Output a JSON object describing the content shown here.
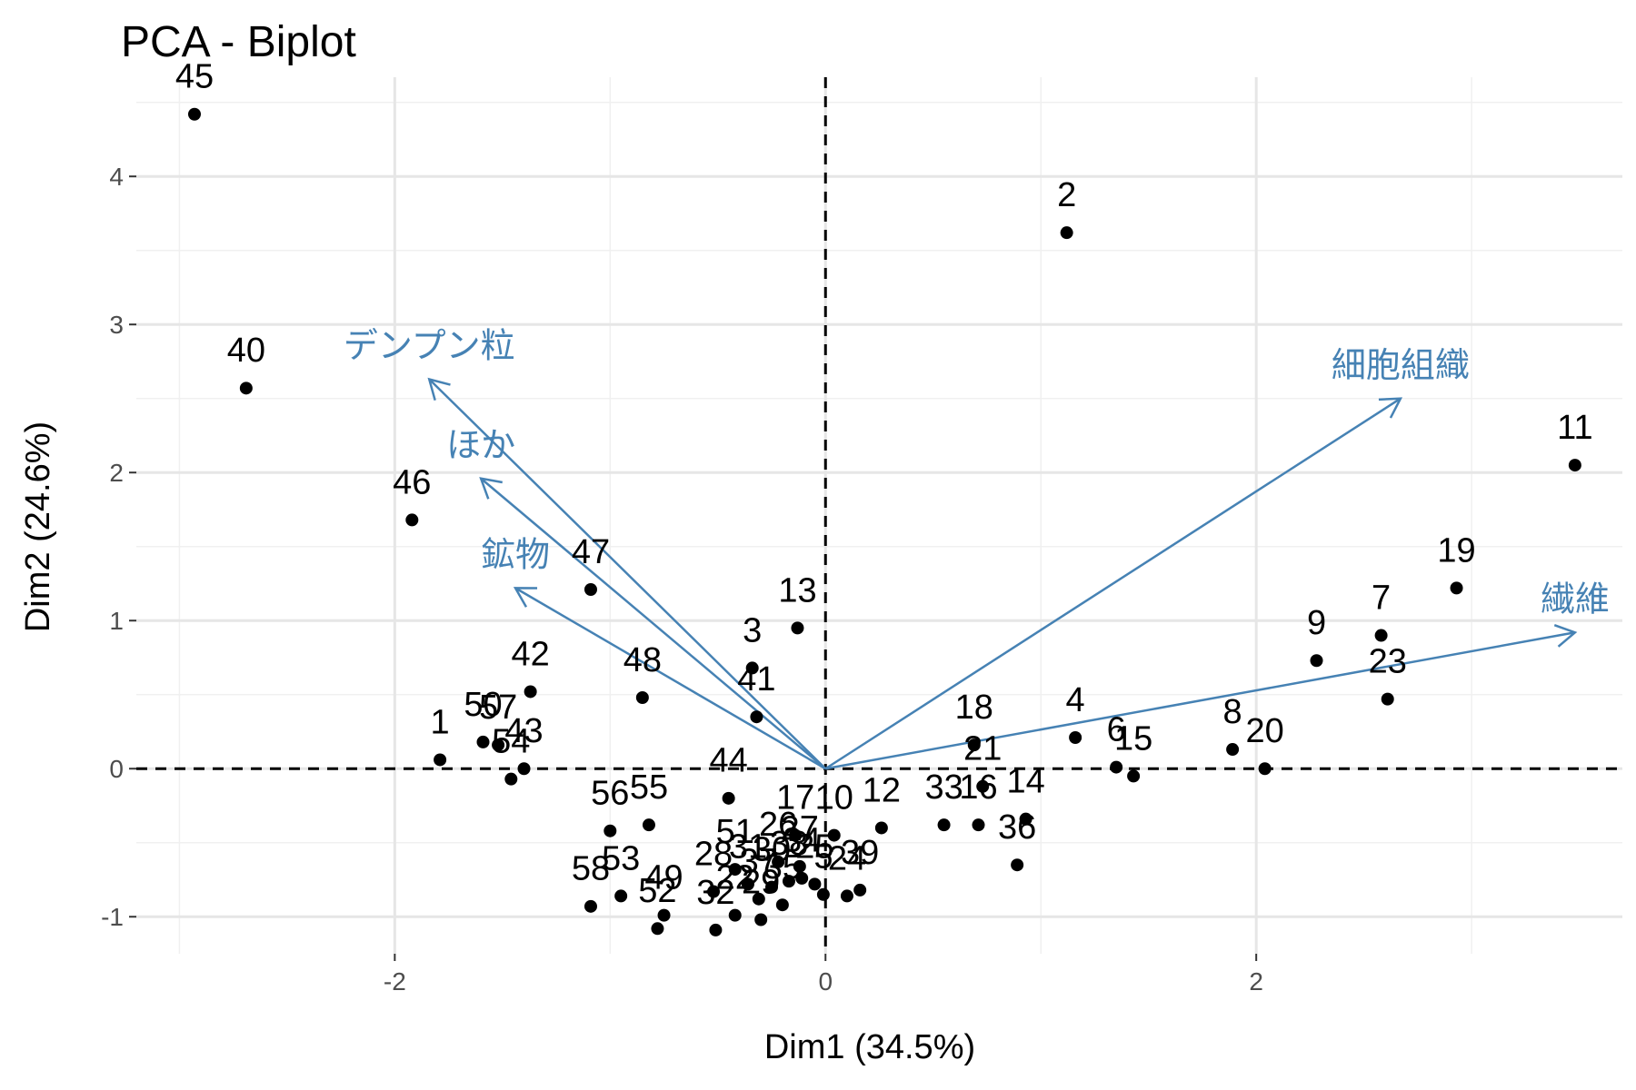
{
  "chart_data": {
    "type": "scatter",
    "title": "PCA - Biplot",
    "xlabel": "Dim1 (34.5%)",
    "ylabel": "Dim2 (24.6%)",
    "xlim": [
      -3.2,
      3.7
    ],
    "ylim": [
      -1.25,
      4.67
    ],
    "x_ticks": [
      -2,
      0,
      2
    ],
    "y_ticks": [
      -1,
      0,
      1,
      2,
      3,
      4
    ],
    "grid": true,
    "reference_lines": {
      "x": 0,
      "y": 0,
      "style": "dashed"
    },
    "arrow_color": "#4682B4",
    "point_color": "#000000",
    "points": [
      {
        "label": "45",
        "x": -2.93,
        "y": 4.42
      },
      {
        "label": "2",
        "x": 1.12,
        "y": 3.62
      },
      {
        "label": "40",
        "x": -2.69,
        "y": 2.57
      },
      {
        "label": "11",
        "x": 3.48,
        "y": 2.05
      },
      {
        "label": "46",
        "x": -1.92,
        "y": 1.68
      },
      {
        "label": "47",
        "x": -1.09,
        "y": 1.21
      },
      {
        "label": "19",
        "x": 2.93,
        "y": 1.22
      },
      {
        "label": "13",
        "x": -0.13,
        "y": 0.95
      },
      {
        "label": "7",
        "x": 2.58,
        "y": 0.9
      },
      {
        "label": "9",
        "x": 2.28,
        "y": 0.73
      },
      {
        "label": "3",
        "x": -0.34,
        "y": 0.68
      },
      {
        "label": "23",
        "x": 2.61,
        "y": 0.47
      },
      {
        "label": "42",
        "x": -1.37,
        "y": 0.52
      },
      {
        "label": "48",
        "x": -0.85,
        "y": 0.48
      },
      {
        "label": "41",
        "x": -0.32,
        "y": 0.35
      },
      {
        "label": "50",
        "x": -1.59,
        "y": 0.18
      },
      {
        "label": "1",
        "x": -1.79,
        "y": 0.06
      },
      {
        "label": "57",
        "x": -1.52,
        "y": 0.16
      },
      {
        "label": "43",
        "x": -1.4,
        "y": 0.0
      },
      {
        "label": "54",
        "x": -1.46,
        "y": -0.07
      },
      {
        "label": "18",
        "x": 0.69,
        "y": 0.16
      },
      {
        "label": "4",
        "x": 1.16,
        "y": 0.21
      },
      {
        "label": "8",
        "x": 1.89,
        "y": 0.13
      },
      {
        "label": "20",
        "x": 2.04,
        "y": 0.0
      },
      {
        "label": "6",
        "x": 1.35,
        "y": 0.01
      },
      {
        "label": "15",
        "x": 1.43,
        "y": -0.05
      },
      {
        "label": "21",
        "x": 0.73,
        "y": -0.12
      },
      {
        "label": "33",
        "x": 0.55,
        "y": -0.38
      },
      {
        "label": "16",
        "x": 0.71,
        "y": -0.38
      },
      {
        "label": "14",
        "x": 0.93,
        "y": -0.34
      },
      {
        "label": "36",
        "x": 0.89,
        "y": -0.65
      },
      {
        "label": "12",
        "x": 0.26,
        "y": -0.4
      },
      {
        "label": "44",
        "x": -0.45,
        "y": -0.2
      },
      {
        "label": "56",
        "x": -1.0,
        "y": -0.42
      },
      {
        "label": "55",
        "x": -0.82,
        "y": -0.38
      },
      {
        "label": "17",
        "x": -0.14,
        "y": -0.45
      },
      {
        "label": "10",
        "x": 0.04,
        "y": -0.45
      },
      {
        "label": "51",
        "x": -0.42,
        "y": -0.68
      },
      {
        "label": "26",
        "x": -0.22,
        "y": -0.63
      },
      {
        "label": "27",
        "x": -0.12,
        "y": -0.66
      },
      {
        "label": "28",
        "x": -0.52,
        "y": -0.83
      },
      {
        "label": "31",
        "x": -0.36,
        "y": -0.78
      },
      {
        "label": "30",
        "x": -0.25,
        "y": -0.8
      },
      {
        "label": "25",
        "x": -0.05,
        "y": -0.78
      },
      {
        "label": "24",
        "x": 0.1,
        "y": -0.86
      },
      {
        "label": "53",
        "x": -0.95,
        "y": -0.86
      },
      {
        "label": "58",
        "x": -1.09,
        "y": -0.93
      },
      {
        "label": "49",
        "x": -0.75,
        "y": -0.99
      },
      {
        "label": "52",
        "x": -0.78,
        "y": -1.08
      },
      {
        "label": "32",
        "x": -0.51,
        "y": -1.09
      },
      {
        "label": "22",
        "x": -0.42,
        "y": -0.99
      },
      {
        "label": "29",
        "x": -0.3,
        "y": -1.02
      },
      {
        "label": "35",
        "x": -0.2,
        "y": -0.92
      },
      {
        "label": "34",
        "x": -0.11,
        "y": -0.74
      },
      {
        "label": "37",
        "x": -0.31,
        "y": -0.88
      },
      {
        "label": "38",
        "x": -0.17,
        "y": -0.76
      },
      {
        "label": "39",
        "x": 0.16,
        "y": -0.82
      },
      {
        "label": "5",
        "x": -0.01,
        "y": -0.85
      }
    ],
    "label_offsets": {
      "45": [
        0,
        -0.24
      ],
      "2": [
        0,
        -0.24
      ],
      "40": [
        0,
        -0.24
      ],
      "11": [
        0,
        -0.24
      ],
      "46": [
        0,
        -0.24
      ],
      "47": [
        0,
        -0.24
      ],
      "19": [
        0,
        -0.24
      ],
      "13": [
        0,
        -0.24
      ],
      "7": [
        0,
        -0.24
      ],
      "9": [
        0,
        -0.24
      ],
      "3": [
        0,
        -0.24
      ],
      "23": [
        0,
        -0.24
      ],
      "42": [
        0,
        -0.24
      ],
      "48": [
        0,
        -0.24
      ],
      "41": [
        0,
        -0.24
      ],
      "50": [
        0,
        -0.24
      ],
      "1": [
        0,
        -0.24
      ],
      "57": [
        0,
        -0.24
      ],
      "43": [
        0,
        -0.24
      ],
      "54": [
        0,
        -0.24
      ],
      "18": [
        0,
        -0.24
      ],
      "4": [
        0,
        -0.24
      ],
      "8": [
        0,
        -0.24
      ],
      "20": [
        0,
        -0.24
      ],
      "6": [
        0,
        -0.24
      ],
      "15": [
        0,
        -0.24
      ],
      "21": [
        0,
        -0.24
      ],
      "33": [
        0,
        -0.24
      ],
      "16": [
        0,
        -0.24
      ],
      "14": [
        0,
        -0.24
      ],
      "36": [
        0,
        -0.24
      ],
      "12": [
        0,
        -0.24
      ],
      "44": [
        0,
        -0.24
      ],
      "56": [
        0,
        -0.24
      ],
      "55": [
        0,
        -0.24
      ],
      "17": [
        0,
        -0.24
      ],
      "10": [
        0,
        -0.24
      ],
      "51": [
        0,
        -0.24
      ],
      "26": [
        0,
        -0.24
      ],
      "27": [
        0,
        -0.24
      ],
      "28": [
        0,
        -0.24
      ],
      "31": [
        0,
        -0.24
      ],
      "30": [
        0,
        -0.24
      ],
      "25": [
        0,
        -0.24
      ],
      "24": [
        0,
        -0.24
      ],
      "53": [
        0,
        -0.24
      ],
      "58": [
        0,
        -0.24
      ],
      "49": [
        0,
        -0.24
      ],
      "52": [
        0,
        -0.24
      ],
      "32": [
        0,
        -0.24
      ],
      "22": [
        0,
        -0.24
      ],
      "29": [
        0,
        -0.24
      ],
      "35": [
        0,
        -0.24
      ],
      "34": [
        0,
        -0.24
      ],
      "37": [
        0,
        -0.24
      ],
      "38": [
        0,
        -0.24
      ],
      "39": [
        0,
        -0.24
      ],
      "5": [
        0,
        -0.24
      ]
    },
    "variables": [
      {
        "name": "デンプン粒",
        "x": -1.84,
        "y": 2.63
      },
      {
        "name": "ほか",
        "x": -1.6,
        "y": 1.96
      },
      {
        "name": "鉱物",
        "x": -1.44,
        "y": 1.22
      },
      {
        "name": "細胞組織",
        "x": 2.67,
        "y": 2.5
      },
      {
        "name": "繊維",
        "x": 3.48,
        "y": 0.92
      }
    ],
    "variable_label_offsets": {
      "デンプン粒": [
        0,
        0.22
      ],
      "ほか": [
        0,
        0.22
      ],
      "鉱物": [
        0,
        0.22
      ],
      "細胞組織": [
        0,
        0.22
      ],
      "繊維": [
        0,
        0.22
      ]
    }
  }
}
